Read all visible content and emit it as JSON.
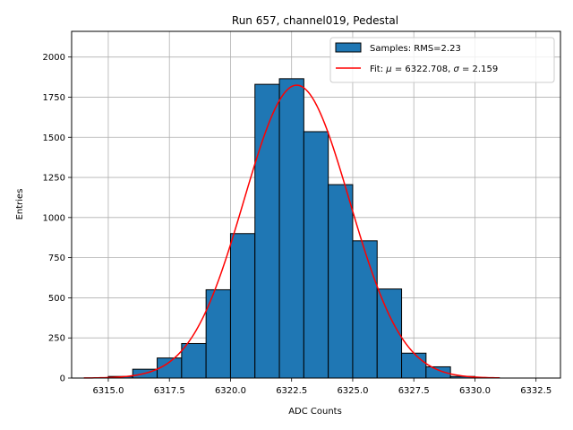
{
  "chart_data": {
    "type": "bar",
    "title": "Run 657, channel019, Pedestal",
    "xlabel": "ADC Counts",
    "ylabel": "Entries",
    "xlim": [
      6313.5,
      6333.5
    ],
    "ylim": [
      0,
      2160
    ],
    "grid": true,
    "legend_placement": "top-right",
    "x_ticks": [
      6315.0,
      6317.5,
      6320.0,
      6322.5,
      6325.0,
      6327.5,
      6330.0,
      6332.5
    ],
    "x_tick_labels": [
      "6315.0",
      "6317.5",
      "6320.0",
      "6322.5",
      "6325.0",
      "6327.5",
      "6330.0",
      "6332.5"
    ],
    "y_ticks": [
      0,
      250,
      500,
      750,
      1000,
      1250,
      1500,
      1750,
      2000
    ],
    "y_tick_labels": [
      "0",
      "250",
      "500",
      "750",
      "1000",
      "1250",
      "1500",
      "1750",
      "2000"
    ],
    "histogram": {
      "name": "Samples: RMS=2.23",
      "bin_edges": [
        6315,
        6316,
        6317,
        6318,
        6319,
        6320,
        6321,
        6322,
        6323,
        6324,
        6325,
        6326,
        6327,
        6328,
        6329,
        6330,
        6331,
        6332,
        6333
      ],
      "counts": [
        10,
        55,
        125,
        215,
        550,
        900,
        1830,
        1865,
        1535,
        1205,
        855,
        555,
        155,
        70,
        10,
        2,
        0,
        0
      ],
      "color": "#1f77b4",
      "edgecolor": "#000000"
    },
    "fit": {
      "name_prefix": "Fit: ",
      "mu_symbol": "μ",
      "sigma_symbol": "σ",
      "mu_text": " = 6322.708, ",
      "sigma_text": " = 2.159",
      "mu": 6322.708,
      "sigma": 2.159,
      "amplitude": 1825,
      "x_range": [
        6314,
        6331
      ],
      "color": "#ff0000"
    }
  }
}
